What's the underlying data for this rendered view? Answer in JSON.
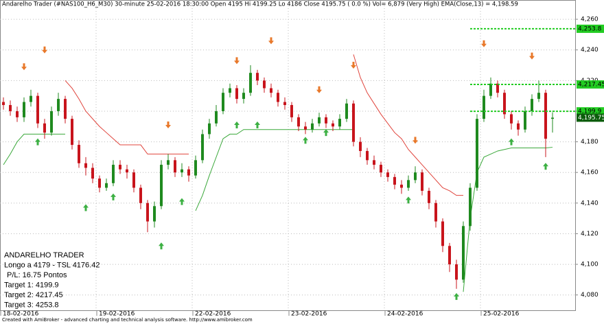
{
  "chart_data": {
    "type": "candlestick",
    "title": "Andarelho Trader (#NAS100_H6_M30) 30-minute  25-02-2016 18:30:00   Open 4195  Hi 4199.25  Lo 4186  Close 4195.75  ( 0.0 %)   Vol= 6,879 (Very High)   EMA(Close,13) = 4,198.59",
    "footer": "Created with AmiBroker - advanced charting and technical analysis software. http://www.amibroker.com",
    "categories": [
      "18-02-2016",
      null,
      null,
      null,
      null,
      null,
      null,
      null,
      null,
      null,
      null,
      null,
      null,
      null,
      "19-02-2016",
      null,
      null,
      null,
      null,
      null,
      null,
      null,
      null,
      null,
      null,
      null,
      null,
      null,
      "22-02-2016",
      null,
      null,
      null,
      null,
      null,
      null,
      null,
      null,
      null,
      null,
      null,
      null,
      null,
      "23-02-2016",
      null,
      null,
      null,
      null,
      null,
      null,
      null,
      null,
      null,
      null,
      null,
      null,
      null,
      "24-02-2016",
      null,
      null,
      null,
      null,
      null,
      null,
      null,
      null,
      null,
      null,
      null,
      null,
      null,
      "25-02-2016",
      null,
      null,
      null,
      null,
      null,
      null,
      null,
      null,
      null,
      null
    ],
    "open": [
      4206,
      4204,
      4200,
      4196,
      4206,
      4210,
      4192,
      4186,
      4200,
      4208,
      4195,
      4178,
      4166,
      4163,
      4156,
      4150,
      4153,
      4165,
      4162,
      4160,
      4150,
      4140,
      4128,
      4138,
      4165,
      4168,
      4160,
      4162,
      4158,
      4168,
      4185,
      4192,
      4200,
      4212,
      4215,
      4208,
      4212,
      4225,
      4220,
      4215,
      4212,
      4206,
      4204,
      4196,
      4190,
      4188,
      4192,
      4196,
      4192,
      4190,
      4195,
      4205,
      4180,
      4174,
      4168,
      4165,
      4160,
      4157,
      4152,
      4150,
      4155,
      4160,
      4148,
      4140,
      4128,
      4112,
      4100,
      4090,
      4125,
      4150,
      4195,
      4210,
      4218,
      4212,
      4198,
      4192,
      4188,
      4200,
      4208,
      4212,
      4195
    ],
    "high": [
      4209,
      4207,
      4203,
      4209,
      4214,
      4212,
      4195,
      4203,
      4212,
      4210,
      4197,
      4181,
      4170,
      4166,
      4158,
      4156,
      4168,
      4168,
      4165,
      4162,
      4152,
      4142,
      4141,
      4168,
      4172,
      4170,
      4166,
      4164,
      4171,
      4188,
      4195,
      4204,
      4215,
      4218,
      4217,
      4215,
      4230,
      4227,
      4222,
      4218,
      4214,
      4209,
      4206,
      4198,
      4193,
      4195,
      4199,
      4198,
      4194,
      4198,
      4208,
      4207,
      4183,
      4176,
      4171,
      4167,
      4162,
      4159,
      4155,
      4158,
      4164,
      4162,
      4150,
      4142,
      4130,
      4114,
      4103,
      4128,
      4153,
      4198,
      4214,
      4222,
      4220,
      4214,
      4200,
      4194,
      4203,
      4211,
      4220,
      4214,
      4199.25
    ],
    "low": [
      4201,
      4197,
      4193,
      4193,
      4203,
      4189,
      4182,
      4184,
      4197,
      4192,
      4175,
      4163,
      4158,
      4153,
      4147,
      4148,
      4151,
      4159,
      4156,
      4147,
      4136,
      4121,
      4124,
      4136,
      4162,
      4157,
      4157,
      4154,
      4156,
      4166,
      4182,
      4190,
      4198,
      4209,
      4205,
      4205,
      4210,
      4217,
      4212,
      4209,
      4203,
      4201,
      4193,
      4187,
      4185,
      4186,
      4190,
      4189,
      4187,
      4188,
      4193,
      4177,
      4170,
      4165,
      4162,
      4157,
      4154,
      4149,
      4146,
      4148,
      4153,
      4145,
      4136,
      4124,
      4108,
      4095,
      4084,
      4088,
      4122,
      4148,
      4193,
      4208,
      4209,
      4195,
      4188,
      4184,
      4186,
      4197,
      4206,
      4170,
      4186
    ],
    "close": [
      4204,
      4200,
      4196,
      4206,
      4210,
      4192,
      4186,
      4200,
      4208,
      4195,
      4178,
      4166,
      4163,
      4156,
      4150,
      4153,
      4165,
      4162,
      4160,
      4150,
      4140,
      4128,
      4138,
      4165,
      4168,
      4160,
      4162,
      4158,
      4168,
      4185,
      4192,
      4200,
      4212,
      4215,
      4208,
      4212,
      4225,
      4220,
      4215,
      4212,
      4206,
      4204,
      4196,
      4190,
      4188,
      4192,
      4196,
      4192,
      4190,
      4195,
      4205,
      4180,
      4174,
      4168,
      4165,
      4160,
      4157,
      4152,
      4150,
      4155,
      4160,
      4148,
      4140,
      4128,
      4112,
      4100,
      4090,
      4125,
      4150,
      4195,
      4210,
      4218,
      4212,
      4198,
      4192,
      4188,
      4200,
      4208,
      4212,
      4182,
      4195.75
    ],
    "up_color": "#1f8a1f",
    "down_color": "#c8141c",
    "stop_short": {
      "color": "#e0443c",
      "values": [
        null,
        null,
        null,
        null,
        null,
        null,
        null,
        null,
        null,
        4220,
        4215,
        4208,
        4200,
        4195,
        4190,
        4186,
        4182,
        4178,
        4178,
        4178,
        4178,
        4172,
        4172,
        4172,
        4172,
        4172,
        4172,
        4172,
        null,
        null,
        null,
        null,
        null,
        null,
        null,
        null,
        null,
        null,
        null,
        null,
        null,
        null,
        null,
        null,
        null,
        null,
        null,
        null,
        null,
        null,
        null,
        4237,
        4222,
        4212,
        4205,
        4198,
        4192,
        4186,
        4182,
        4175,
        4170,
        4165,
        4160,
        4155,
        4150,
        4148,
        4145,
        4145,
        null,
        null,
        null,
        null,
        null,
        null,
        null,
        null,
        null,
        null,
        null,
        null,
        null
      ]
    },
    "stop_long": {
      "color": "#3aa83a",
      "values": [
        4165,
        4172,
        4180,
        4185,
        4185,
        4185,
        4185,
        4185,
        4185,
        4185,
        null,
        null,
        null,
        null,
        null,
        null,
        null,
        null,
        null,
        null,
        null,
        null,
        null,
        null,
        null,
        null,
        null,
        null,
        4135,
        4145,
        4158,
        4170,
        4182,
        4185,
        4185,
        4188,
        4188,
        4188,
        4188,
        4188,
        4188,
        4188,
        4188,
        4188,
        4188,
        4188,
        4188,
        4188,
        4188,
        4188,
        4188,
        4188,
        null,
        null,
        null,
        null,
        null,
        null,
        null,
        null,
        null,
        null,
        null,
        null,
        null,
        null,
        null,
        4082,
        4130,
        4160,
        4170,
        4172,
        4174,
        4175,
        4176,
        4176,
        4176,
        4176,
        4176,
        4176,
        4176.42
      ]
    },
    "buy_signals": {
      "color": "#3cb043",
      "x": [
        5,
        12,
        16,
        23,
        26,
        34,
        37,
        44,
        47,
        59,
        66,
        74,
        79
      ],
      "values": [
        4180,
        4137,
        4144,
        4112,
        4141,
        4191,
        4191,
        4181,
        4186,
        4142,
        4079,
        4180,
        4164
      ]
    },
    "sell_signals": {
      "color": "#e8782a",
      "x": [
        3,
        6,
        24,
        34,
        39,
        46,
        51,
        60,
        70,
        77
      ],
      "values": [
        4229,
        4240,
        4191,
        4233,
        4246,
        4214,
        4230,
        4181,
        4244,
        4236
      ]
    },
    "targets": {
      "color": "#22cc22",
      "start": 68,
      "values": [
        4253.8,
        4217.45,
        4199.9
      ],
      "labels": [
        "4,253.8",
        "4,217.45",
        "4,199.9"
      ]
    },
    "last_label": "4,195.75",
    "ylim": [
      4070,
      4269
    ],
    "yticks": [
      {
        "value": 4080,
        "label": "4,080"
      },
      {
        "value": 4100,
        "label": "4,100"
      },
      {
        "value": 4120,
        "label": "4,120"
      },
      {
        "value": 4140,
        "label": "4,140"
      },
      {
        "value": 4160,
        "label": "4,160"
      },
      {
        "value": 4180,
        "label": "4,180"
      },
      {
        "value": 4200,
        "label": "4,200"
      },
      {
        "value": 4220,
        "label": "4,220"
      },
      {
        "value": 4240,
        "label": "4,240"
      },
      {
        "value": 4260,
        "label": "4,260"
      }
    ],
    "grid": true,
    "annotations": [
      "ANDARELHO TRADER",
      "Longo a 4179 - TSL 4176.42",
      "P/L: 16.75 Pontos",
      "Target 1: 4199.9",
      "Target 2: 4217.45",
      "Target 3: 4253.8"
    ]
  }
}
